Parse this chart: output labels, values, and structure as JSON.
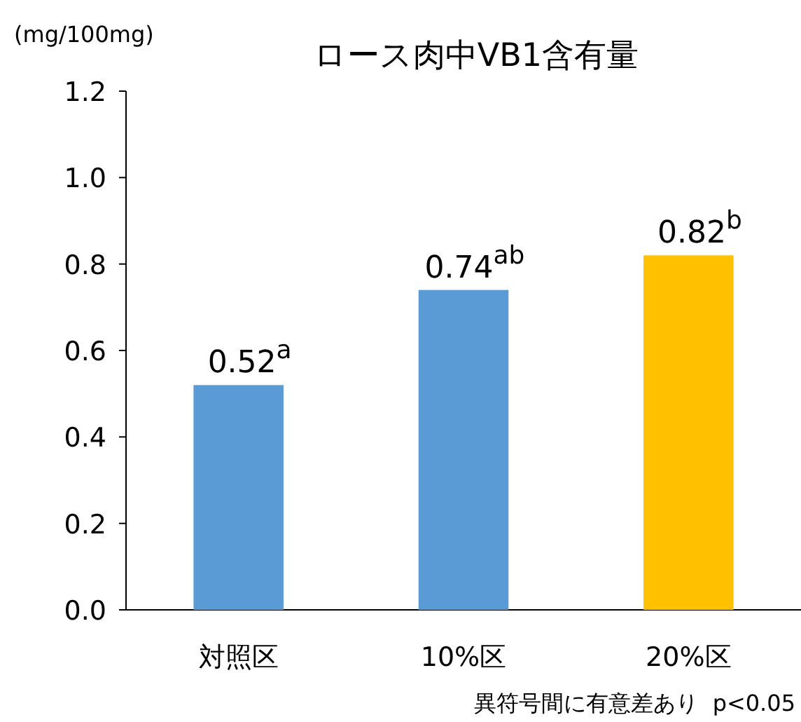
{
  "chart_data": {
    "type": "bar",
    "title": "ロース肉中VB1含有量",
    "ylabel": "(mg/100mg)",
    "categories": [
      "対照区",
      "10%区",
      "20%区"
    ],
    "values": [
      0.52,
      0.74,
      0.82
    ],
    "colors": [
      "#5b9bd5",
      "#5b9bd5",
      "#ffc000"
    ],
    "value_labels": [
      "0.52$^{a}$",
      "0.74$^{ab}$",
      "0.82$^{b}$"
    ],
    "ylim": [
      0,
      1.2
    ],
    "yticks": [
      {
        "value": 0,
        "label": "0.0"
      },
      {
        "value": 0.2,
        "label": "0.2"
      },
      {
        "value": 0.4,
        "label": "0.4"
      },
      {
        "value": 0.6,
        "label": "0.6"
      },
      {
        "value": 0.8,
        "label": "0.8"
      },
      {
        "value": 1,
        "label": "1.0"
      },
      {
        "value": 1.2,
        "label": "1.2"
      }
    ],
    "annotations": [
      "異符号間に有意差あり  p<0.05"
    ]
  }
}
